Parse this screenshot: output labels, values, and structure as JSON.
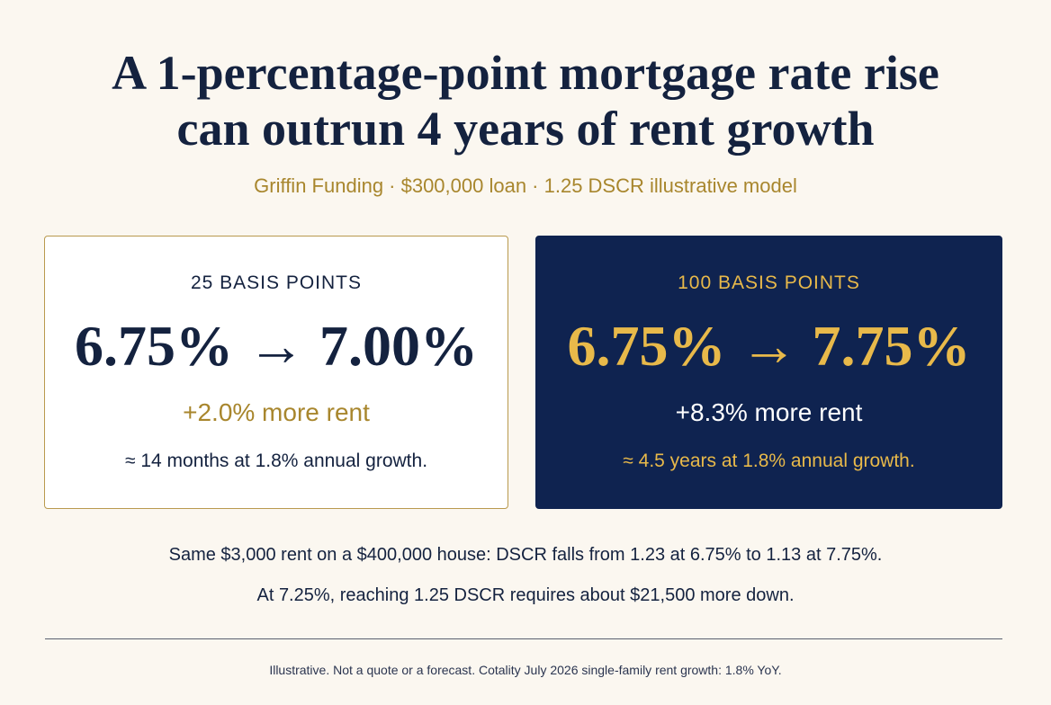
{
  "title_line1": "A 1-percentage-point mortgage rate rise",
  "title_line2": "can outrun 4 years of rent growth",
  "subtitle": "Griffin Funding · $300,000 loan · 1.25 DSCR illustrative model",
  "cards": [
    {
      "label": "25 BASIS POINTS",
      "rates": "6.75% → 7.00%",
      "more_rent": "+2.0% more rent",
      "growth": "≈ 14 months at 1.8% annual growth."
    },
    {
      "label": "100 BASIS POINTS",
      "rates": "6.75% → 7.75%",
      "more_rent": "+8.3% more rent",
      "growth": "≈ 4.5 years at 1.8% annual growth."
    }
  ],
  "notes": [
    "Same $3,000 rent on a $400,000 house: DSCR falls from 1.23 at 6.75% to 1.13 at 7.75%.",
    "At 7.25%, reaching 1.25 DSCR requires about $21,500 more down."
  ],
  "footnote": "Illustrative. Not a quote or a forecast. Cotality July 2026 single-family rent growth: 1.8% YoY.",
  "colors": {
    "background": "#fbf7f0",
    "navy": "#14223f",
    "dark_card": "#0f2350",
    "gold": "#a8862d",
    "bright_gold": "#e8b94a"
  }
}
